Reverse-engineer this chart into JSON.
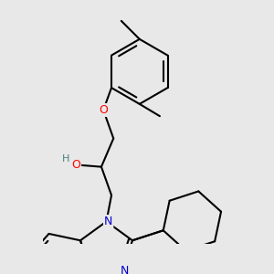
{
  "background_color": "#e8e8e8",
  "bond_color": "#000000",
  "bond_width": 1.5,
  "atom_colors": {
    "O": "#ff0000",
    "N": "#0000cc",
    "H": "#4a8080"
  },
  "figsize": [
    3.0,
    3.0
  ],
  "dpi": 100
}
